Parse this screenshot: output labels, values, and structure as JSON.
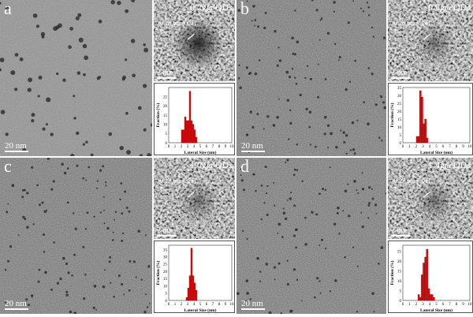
{
  "panels": [
    {
      "letter": "a",
      "scale_main": "20 nm",
      "sample": "0.2g@QDs",
      "d_spacing": "0.18 nm [002]",
      "scale_inset": "2 nm"
    },
    {
      "letter": "b",
      "scale_main": "20 nm",
      "sample": "0.6g@QDs",
      "d_spacing": "0.26 nm [110]",
      "scale_inset": "2 nm"
    },
    {
      "letter": "c",
      "scale_main": "20 nm",
      "sample": "1.0g@QDs",
      "d_spacing": "0.17 nm [221]",
      "scale_inset": "2 nm"
    },
    {
      "letter": "d",
      "scale_main": "20 nm",
      "sample": "1.4g@QDs",
      "d_spacing": "0.27 nm [101]",
      "scale_inset": "2 nm"
    }
  ],
  "colors": {
    "bar_fill": "#e01010",
    "bar_edge": "#700000"
  },
  "chart_data": [
    {
      "type": "bar",
      "panel": "a",
      "xlabel": "Lateral Size (nm)",
      "ylabel": "Fraction (%)",
      "xlim": [
        0,
        10
      ],
      "ylim": [
        0,
        30
      ],
      "xticks": [
        0,
        1,
        2,
        3,
        4,
        5,
        6,
        7,
        8,
        9,
        10
      ],
      "yticks": [
        0,
        5,
        10,
        15,
        20,
        25
      ],
      "bin_width": 0.25,
      "x": [
        2.0,
        2.25,
        2.5,
        2.75,
        3.0,
        3.25,
        3.5,
        3.75,
        4.0,
        4.25
      ],
      "values": [
        7,
        7,
        14,
        12,
        12,
        28,
        12,
        10,
        7,
        3
      ]
    },
    {
      "type": "bar",
      "panel": "b",
      "xlabel": "Lateral Size (nm)",
      "ylabel": "Fraction (%)",
      "xlim": [
        0,
        10
      ],
      "ylim": [
        0,
        35
      ],
      "xticks": [
        0,
        1,
        2,
        3,
        4,
        5,
        6,
        7,
        8,
        9,
        10
      ],
      "yticks": [
        0,
        5,
        10,
        15,
        20,
        25,
        30,
        35
      ],
      "bin_width": 0.25,
      "x": [
        2.0,
        2.25,
        2.5,
        2.75,
        3.0,
        3.25,
        3.5,
        3.75,
        4.0
      ],
      "values": [
        4,
        4,
        33,
        29,
        12,
        15,
        3,
        0,
        0
      ]
    },
    {
      "type": "bar",
      "panel": "c",
      "xlabel": "Lateral Size (nm)",
      "ylabel": "Fraction (%)",
      "xlim": [
        0,
        10
      ],
      "ylim": [
        0,
        38
      ],
      "xticks": [
        0,
        1,
        2,
        3,
        4,
        5,
        6,
        7,
        8,
        9,
        10
      ],
      "yticks": [
        0,
        5,
        10,
        15,
        20,
        25,
        30,
        35
      ],
      "bin_width": 0.25,
      "x": [
        2.75,
        3.0,
        3.25,
        3.5,
        3.75,
        4.0,
        4.25
      ],
      "values": [
        2,
        8.5,
        17,
        36,
        17,
        12,
        7
      ]
    },
    {
      "type": "bar",
      "panel": "d",
      "xlabel": "Lateral Size (nm)",
      "ylabel": "Fraction (%)",
      "xlim": [
        0,
        10
      ],
      "ylim": [
        0,
        28
      ],
      "xticks": [
        0,
        1,
        2,
        3,
        4,
        5,
        6,
        7,
        8,
        9,
        10
      ],
      "yticks": [
        0,
        5,
        10,
        15,
        20,
        25
      ],
      "bin_width": 0.25,
      "x": [
        2.25,
        2.5,
        2.75,
        3.0,
        3.25,
        3.5,
        3.75,
        4.0,
        4.25,
        4.5
      ],
      "values": [
        3,
        1.5,
        13,
        19,
        22,
        26,
        6,
        3,
        3,
        1.5
      ]
    }
  ]
}
